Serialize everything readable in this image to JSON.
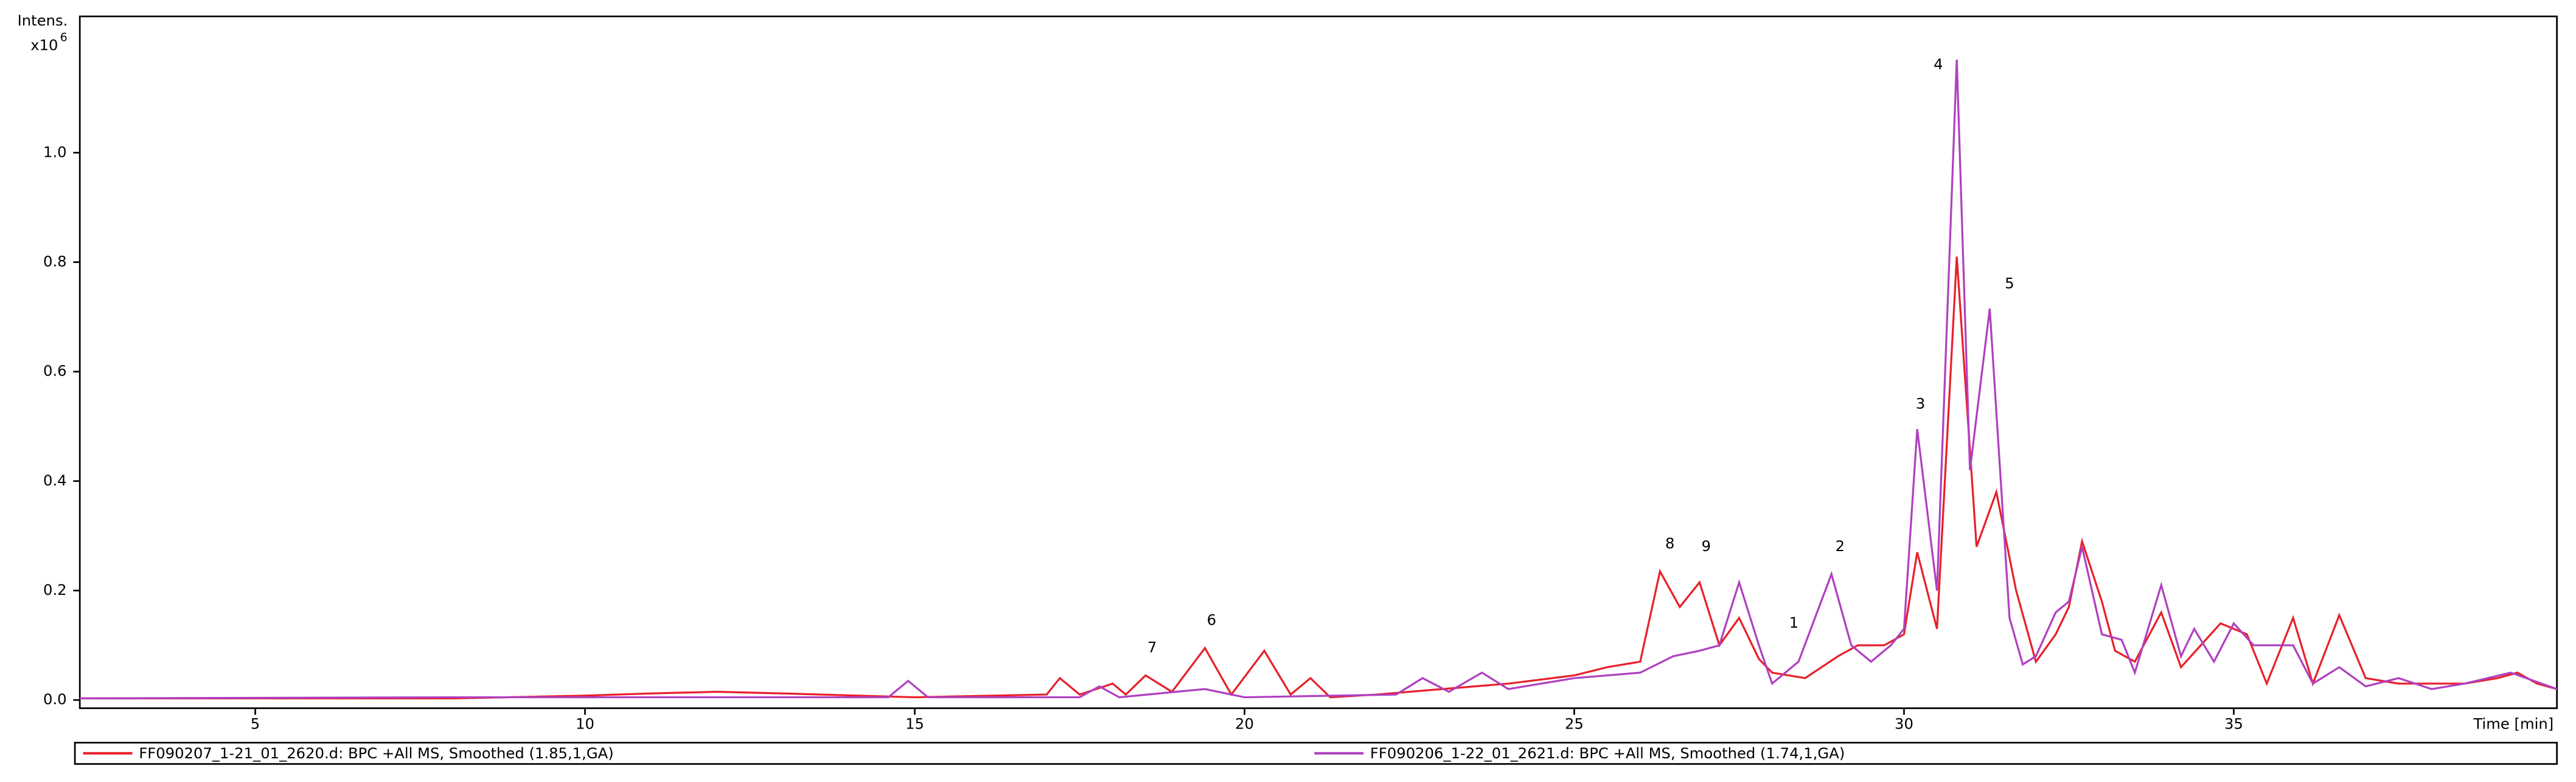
{
  "chart_data": {
    "type": "line",
    "y_label": "Intens.",
    "y_unit": "x10",
    "y_unit_exponent": "6",
    "x_label": "Time [min]",
    "xlim": [
      2.34,
      39.9
    ],
    "ylim": [
      -0.015,
      1.249
    ],
    "xticks": [
      5,
      10,
      15,
      20,
      25,
      30,
      35
    ],
    "yticks": [
      {
        "value": 0,
        "label": "0.0"
      },
      0.2,
      0.4,
      0.6,
      0.8,
      {
        "value": 1,
        "label": "1.0"
      }
    ],
    "series": [
      {
        "name": "FF090207_1-21_01_2620.d: BPC +All MS, Smoothed (1.85,1,GA)",
        "color": "#e8202a",
        "x": [
          2.34,
          5,
          8,
          10,
          11,
          12,
          13,
          15,
          17,
          17.2,
          17.5,
          18,
          18.2,
          18.5,
          18.9,
          19.4,
          19.8,
          20.3,
          20.7,
          21.0,
          21.3,
          22,
          23,
          24,
          25,
          25.5,
          26,
          26.3,
          26.6,
          26.9,
          27.2,
          27.5,
          27.8,
          28.0,
          28.5,
          29,
          29.3,
          29.7,
          30.0,
          30.2,
          30.5,
          30.8,
          31.1,
          31.4,
          31.7,
          32.0,
          32.3,
          32.5,
          32.7,
          33.0,
          33.2,
          33.5,
          33.9,
          34.2,
          34.5,
          34.8,
          35.2,
          35.5,
          35.9,
          36.2,
          36.6,
          37,
          37.5,
          38,
          38.5,
          39,
          39.3,
          39.6,
          39.9
        ],
        "values": [
          0.003,
          0.003,
          0.003,
          0.008,
          0.012,
          0.015,
          0.012,
          0.005,
          0.01,
          0.04,
          0.01,
          0.03,
          0.01,
          0.045,
          0.015,
          0.095,
          0.01,
          0.09,
          0.01,
          0.04,
          0.005,
          0.01,
          0.02,
          0.03,
          0.045,
          0.06,
          0.07,
          0.235,
          0.17,
          0.215,
          0.1,
          0.15,
          0.075,
          0.05,
          0.04,
          0.08,
          0.1,
          0.1,
          0.12,
          0.27,
          0.13,
          0.81,
          0.28,
          0.38,
          0.2,
          0.07,
          0.12,
          0.17,
          0.29,
          0.18,
          0.09,
          0.07,
          0.16,
          0.06,
          0.1,
          0.14,
          0.12,
          0.03,
          0.15,
          0.03,
          0.155,
          0.04,
          0.03,
          0.03,
          0.03,
          0.04,
          0.05,
          0.03,
          0.02
        ]
      },
      {
        "name": "FF090206_1-22_01_2621.d: BPC +All MS, Smoothed (1.74,1,GA)",
        "color": "#b040c0",
        "x": [
          2.34,
          8,
          12,
          14.6,
          14.9,
          15.2,
          17.5,
          17.8,
          18.1,
          19.4,
          20,
          22.3,
          22.7,
          23.1,
          23.6,
          24,
          25,
          26,
          26.5,
          26.9,
          27.2,
          27.5,
          27.8,
          28.0,
          28.4,
          28.9,
          29.2,
          29.5,
          29.8,
          30.0,
          30.2,
          30.5,
          30.8,
          31.0,
          31.3,
          31.6,
          31.8,
          32.0,
          32.3,
          32.5,
          32.7,
          33.0,
          33.3,
          33.5,
          33.9,
          34.2,
          34.4,
          34.7,
          35.0,
          35.3,
          35.9,
          36.2,
          36.6,
          37,
          37.5,
          38,
          38.5,
          39.2,
          39.9
        ],
        "values": [
          0.003,
          0.005,
          0.005,
          0.005,
          0.035,
          0.005,
          0.005,
          0.025,
          0.005,
          0.02,
          0.005,
          0.01,
          0.04,
          0.015,
          0.05,
          0.02,
          0.04,
          0.05,
          0.08,
          0.09,
          0.1,
          0.215,
          0.1,
          0.03,
          0.07,
          0.23,
          0.1,
          0.07,
          0.1,
          0.13,
          0.495,
          0.2,
          1.17,
          0.42,
          0.715,
          0.15,
          0.065,
          0.08,
          0.16,
          0.18,
          0.28,
          0.12,
          0.11,
          0.05,
          0.21,
          0.08,
          0.13,
          0.07,
          0.14,
          0.1,
          0.1,
          0.03,
          0.06,
          0.025,
          0.04,
          0.02,
          0.03,
          0.05,
          0.02
        ]
      }
    ],
    "annotations": [
      {
        "text": "1",
        "x": 28.33,
        "y": 0.14
      },
      {
        "text": "2",
        "x": 29.03,
        "y": 0.28
      },
      {
        "text": "3",
        "x": 30.25,
        "y": 0.54
      },
      {
        "text": "4",
        "x": 30.52,
        "y": 1.16
      },
      {
        "text": "5",
        "x": 31.6,
        "y": 0.76
      },
      {
        "text": "6",
        "x": 19.5,
        "y": 0.145
      },
      {
        "text": "7",
        "x": 18.6,
        "y": 0.095
      },
      {
        "text": "8",
        "x": 26.45,
        "y": 0.285
      },
      {
        "text": "9",
        "x": 27.0,
        "y": 0.28
      }
    ]
  }
}
